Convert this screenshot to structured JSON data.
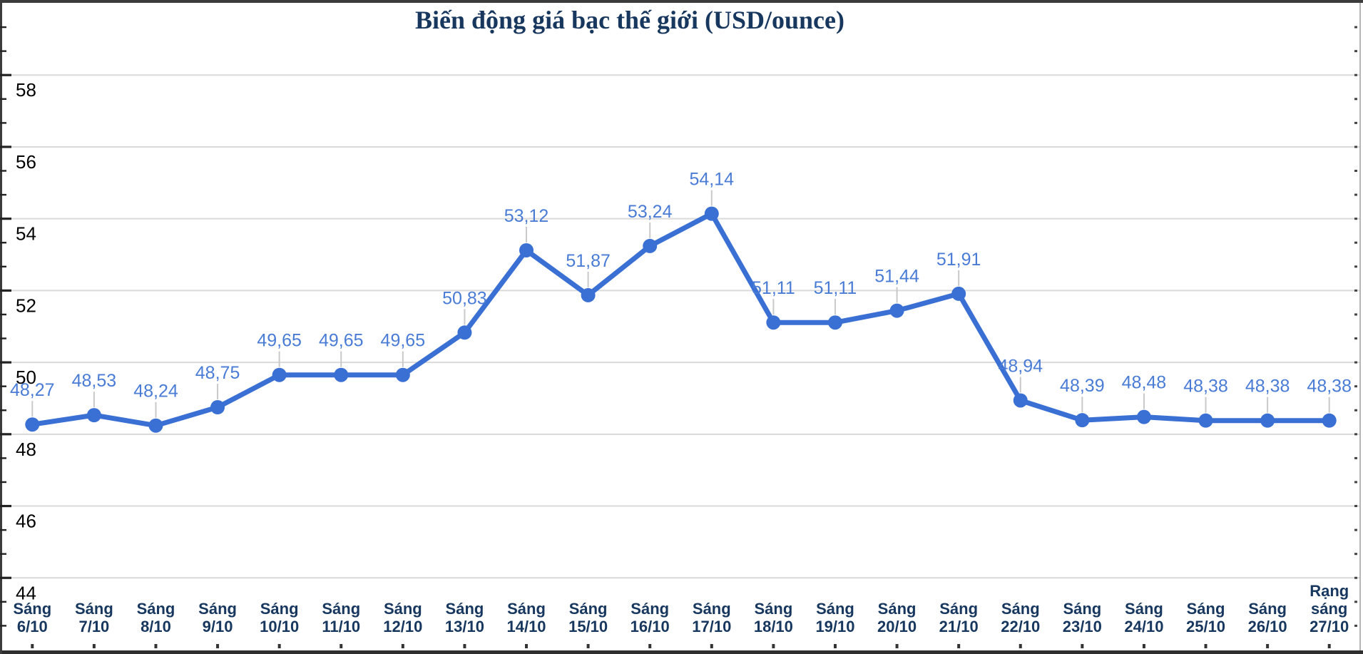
{
  "header": {
    "title": "Biến động giá bạc thế giới (USD/ounce)"
  },
  "chart_data": {
    "type": "line",
    "title": "Biến động giá bạc thế giới (USD/ounce)",
    "categories": [
      [
        "Sáng",
        "6/10"
      ],
      [
        "Sáng",
        "7/10"
      ],
      [
        "Sáng",
        "8/10"
      ],
      [
        "Sáng",
        "9/10"
      ],
      [
        "Sáng",
        "10/10"
      ],
      [
        "Sáng",
        "11/10"
      ],
      [
        "Sáng",
        "12/10"
      ],
      [
        "Sáng",
        "13/10"
      ],
      [
        "Sáng",
        "14/10"
      ],
      [
        "Sáng",
        "15/10"
      ],
      [
        "Sáng",
        "16/10"
      ],
      [
        "Sáng",
        "17/10"
      ],
      [
        "Sáng",
        "18/10"
      ],
      [
        "Sáng",
        "19/10"
      ],
      [
        "Sáng",
        "20/10"
      ],
      [
        "Sáng",
        "21/10"
      ],
      [
        "Sáng",
        "22/10"
      ],
      [
        "Sáng",
        "23/10"
      ],
      [
        "Sáng",
        "24/10"
      ],
      [
        "Sáng",
        "25/10"
      ],
      [
        "Sáng",
        "26/10"
      ],
      [
        "Rạng",
        "sáng",
        "27/10"
      ]
    ],
    "values": [
      48.27,
      48.53,
      48.24,
      48.75,
      49.65,
      49.65,
      49.65,
      50.83,
      53.12,
      51.87,
      53.24,
      54.14,
      51.11,
      51.11,
      51.44,
      51.91,
      48.94,
      48.39,
      48.48,
      48.38,
      48.38,
      48.38
    ],
    "value_labels": [
      "48,27",
      "48,53",
      "48,24",
      "48,75",
      "49,65",
      "49,65",
      "49,65",
      "50,83",
      "53,12",
      "51,87",
      "53,24",
      "54,14",
      "51,11",
      "51,11",
      "51,44",
      "51,91",
      "48,94",
      "48,39",
      "48,48",
      "48,38",
      "48,38",
      "48,38"
    ],
    "y_ticks": [
      58,
      56,
      54,
      52,
      50,
      48,
      46,
      44
    ],
    "ylim": [
      41.92,
      60.03
    ],
    "y_minor_divisions": 3,
    "grid": true,
    "legend": "none",
    "xlabel": "",
    "ylabel": "",
    "unit": "USD/ounce",
    "colors": {
      "line": "#3a6fd3",
      "marker": "#3a6fd3",
      "value_label": "#4a7cd6",
      "grid": "#dadada",
      "leader": "#c9c9c9",
      "y_tick_text": "#000000",
      "x_tick_text": "#17375e",
      "title": "#17375e",
      "frame": "#3c3c3c",
      "right_axis": "#b5b5b5",
      "background": "#ffffff"
    }
  }
}
